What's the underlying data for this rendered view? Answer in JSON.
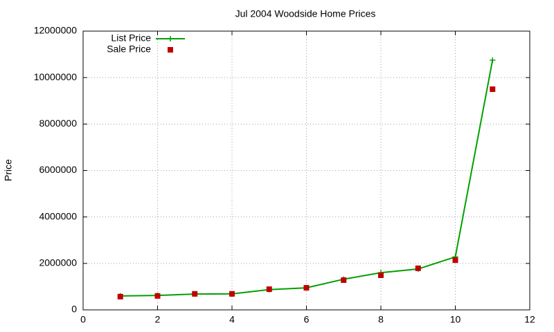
{
  "chart_data": {
    "type": "line",
    "title": "Jul 2004 Woodside Home Prices",
    "y_label": "Price",
    "x": [
      1,
      2,
      3,
      4,
      5,
      6,
      7,
      8,
      9,
      10,
      11
    ],
    "series": [
      {
        "name": "List Price",
        "color": "#00a000",
        "marker": "plus",
        "line": true,
        "values": [
          600000,
          620000,
          680000,
          690000,
          870000,
          950000,
          1320000,
          1600000,
          1760000,
          2280000,
          10750000
        ]
      },
      {
        "name": "Sale Price",
        "color": "#c00000",
        "marker": "square",
        "line": false,
        "values": [
          570000,
          600000,
          690000,
          690000,
          890000,
          950000,
          1280000,
          1490000,
          1790000,
          2140000,
          9500000
        ]
      }
    ],
    "xlim": [
      0,
      12
    ],
    "xticks": [
      0,
      2,
      4,
      6,
      8,
      10,
      12
    ],
    "ylim": [
      0,
      12000000
    ],
    "yticks": [
      0,
      2000000,
      4000000,
      6000000,
      8000000,
      10000000,
      12000000
    ],
    "grid": true,
    "legend": "top-left"
  }
}
